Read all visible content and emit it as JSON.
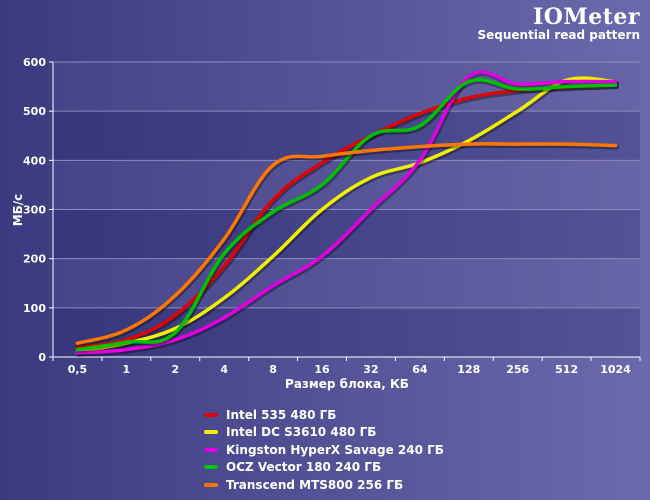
{
  "chart_data": {
    "type": "line",
    "title": "IOMeter",
    "subtitle": "Sequential read pattern",
    "xlabel": "Размер блока, КБ",
    "ylabel": "МБ/с",
    "ylim": [
      0,
      600
    ],
    "yticks": [
      "0",
      "100",
      "200",
      "300",
      "400",
      "500",
      "600"
    ],
    "categories": [
      "0,5",
      "1",
      "2",
      "4",
      "8",
      "16",
      "32",
      "64",
      "128",
      "256",
      "512",
      "1024"
    ],
    "grid": "horizontal",
    "legend_position": "bottom",
    "series": [
      {
        "name": "Intel 535 480 ГБ",
        "color": "#e00000",
        "values": [
          20,
          35,
          85,
          185,
          320,
          395,
          450,
          495,
          527,
          542,
          549,
          553
        ]
      },
      {
        "name": "Intel DC S3610 480 ГБ",
        "color": "#f0f000",
        "values": [
          10,
          28,
          58,
          120,
          205,
          300,
          365,
          395,
          440,
          500,
          563,
          560
        ]
      },
      {
        "name": "Kingston HyperX Savage 240 ГБ",
        "color": "#e000e0",
        "values": [
          8,
          15,
          35,
          80,
          145,
          205,
          300,
          400,
          570,
          555,
          560,
          560
        ]
      },
      {
        "name": "OCZ Vector 180 240 ГБ",
        "color": "#00c000",
        "values": [
          15,
          30,
          50,
          210,
          295,
          350,
          450,
          470,
          560,
          545,
          550,
          553
        ]
      },
      {
        "name": "Transcend MTS800 256 ГБ",
        "color": "#ff7700",
        "values": [
          28,
          55,
          125,
          240,
          390,
          408,
          420,
          428,
          433,
          433,
          433,
          430
        ]
      }
    ]
  }
}
